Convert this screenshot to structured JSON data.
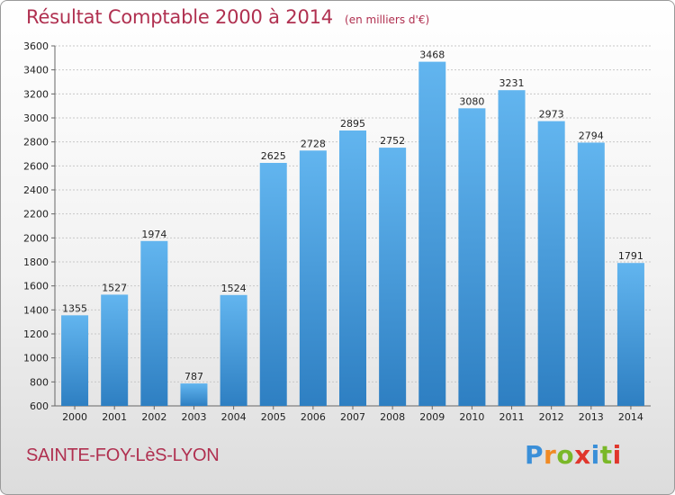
{
  "header": {
    "title": "Résultat Comptable 2000 à 2014",
    "unit": "(en milliers d'€)"
  },
  "footer": {
    "commune": "SAINTE-FOY-LèS-LYON",
    "logo": "Proxiti"
  },
  "colors": {
    "title": "#b03050",
    "bar_top": "#62b5ef",
    "bar_bottom": "#2e7fc2",
    "logo": [
      "#3a8fd8",
      "#f08a24",
      "#7ab828",
      "#e0362c",
      "#3a8fd8",
      "#7ab828",
      "#e0362c"
    ]
  },
  "chart_data": {
    "type": "bar",
    "title": "Résultat Comptable 2000 à 2014",
    "xlabel": "",
    "ylabel": "(en milliers d'€)",
    "categories": [
      "2000",
      "2001",
      "2002",
      "2003",
      "2004",
      "2005",
      "2006",
      "2007",
      "2008",
      "2009",
      "2010",
      "2011",
      "2012",
      "2013",
      "2014"
    ],
    "values": [
      1355,
      1527,
      1974,
      787,
      1524,
      2625,
      2728,
      2895,
      2752,
      3468,
      3080,
      3231,
      2973,
      2794,
      1791
    ],
    "ylim": [
      600,
      3600
    ],
    "yticks": [
      600,
      800,
      1000,
      1200,
      1400,
      1600,
      1800,
      2000,
      2200,
      2400,
      2600,
      2800,
      3000,
      3200,
      3400,
      3600
    ],
    "grid": true,
    "legend": "none"
  }
}
